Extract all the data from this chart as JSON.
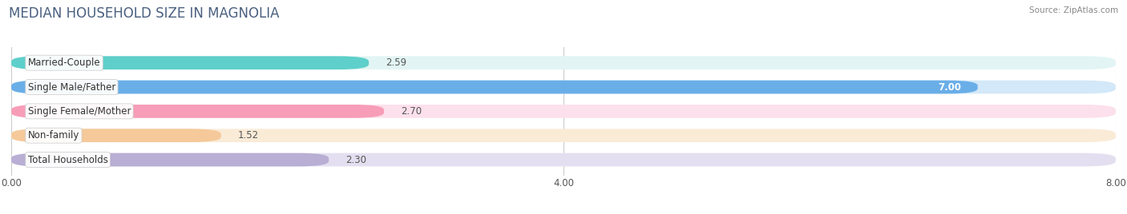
{
  "title": "MEDIAN HOUSEHOLD SIZE IN MAGNOLIA",
  "source": "Source: ZipAtlas.com",
  "categories": [
    "Married-Couple",
    "Single Male/Father",
    "Single Female/Mother",
    "Non-family",
    "Total Households"
  ],
  "values": [
    2.59,
    7.0,
    2.7,
    1.52,
    2.3
  ],
  "bar_colors": [
    "#5ecfca",
    "#6aaee8",
    "#f79db8",
    "#f5c99a",
    "#b9aed4"
  ],
  "bar_bg_colors": [
    "#e2f5f4",
    "#d3e8f8",
    "#fce0eb",
    "#faebd7",
    "#e4dff0"
  ],
  "xlim": [
    0,
    8.0
  ],
  "xticks": [
    0.0,
    4.0,
    8.0
  ],
  "xtick_labels": [
    "0.00",
    "4.00",
    "8.00"
  ],
  "value_label_inside": [
    false,
    true,
    false,
    false,
    false
  ],
  "background_color": "#ffffff",
  "bar_height": 0.55,
  "bar_gap": 1.0,
  "title_fontsize": 12,
  "label_fontsize": 8.5,
  "value_fontsize": 8.5
}
